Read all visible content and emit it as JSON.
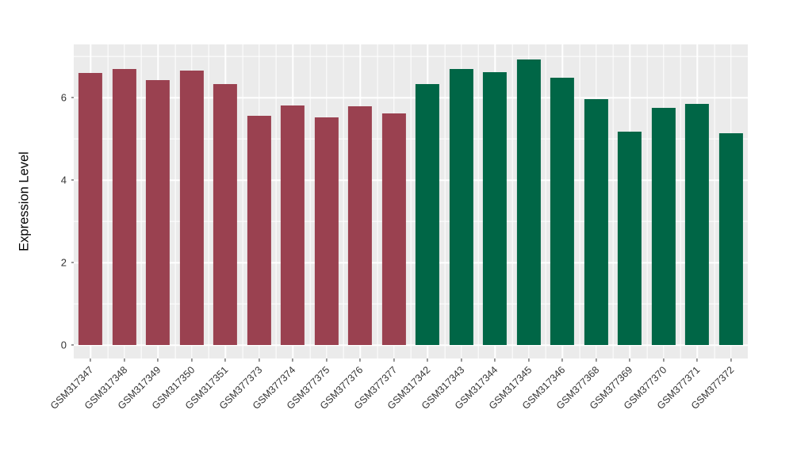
{
  "chart_data": {
    "type": "bar",
    "title": "",
    "xlabel": "",
    "ylabel": "Expression Level",
    "categories": [
      "GSM317347",
      "GSM317348",
      "GSM317349",
      "GSM317350",
      "GSM317351",
      "GSM377373",
      "GSM377374",
      "GSM377375",
      "GSM377376",
      "GSM377377",
      "GSM317342",
      "GSM317343",
      "GSM317344",
      "GSM317345",
      "GSM317346",
      "GSM377368",
      "GSM377369",
      "GSM377370",
      "GSM377371",
      "GSM377372"
    ],
    "values": [
      6.59,
      6.7,
      6.43,
      6.65,
      6.32,
      5.57,
      5.81,
      5.53,
      5.79,
      5.61,
      6.33,
      6.69,
      6.62,
      6.93,
      6.49,
      5.96,
      5.18,
      5.75,
      5.85,
      5.13
    ],
    "fill_groups": [
      {
        "color": "#9A4150",
        "from": 0,
        "to": 9
      },
      {
        "color": "#006646",
        "from": 10,
        "to": 19
      }
    ],
    "ylim": [
      -0.32,
      7.29
    ],
    "yticks": [
      0,
      2,
      4,
      6
    ],
    "ytick_labels": [
      "0",
      "2",
      "4",
      "6"
    ],
    "minor_yticks": [
      1,
      3,
      5,
      7
    ],
    "x_tick_angle": 45,
    "grid": true,
    "legend": "none",
    "panel_bg": "#EBEBEB",
    "grid_color": "#FFFFFF",
    "axis_text_color": "#333333",
    "tick_mark_color": "#333333"
  }
}
